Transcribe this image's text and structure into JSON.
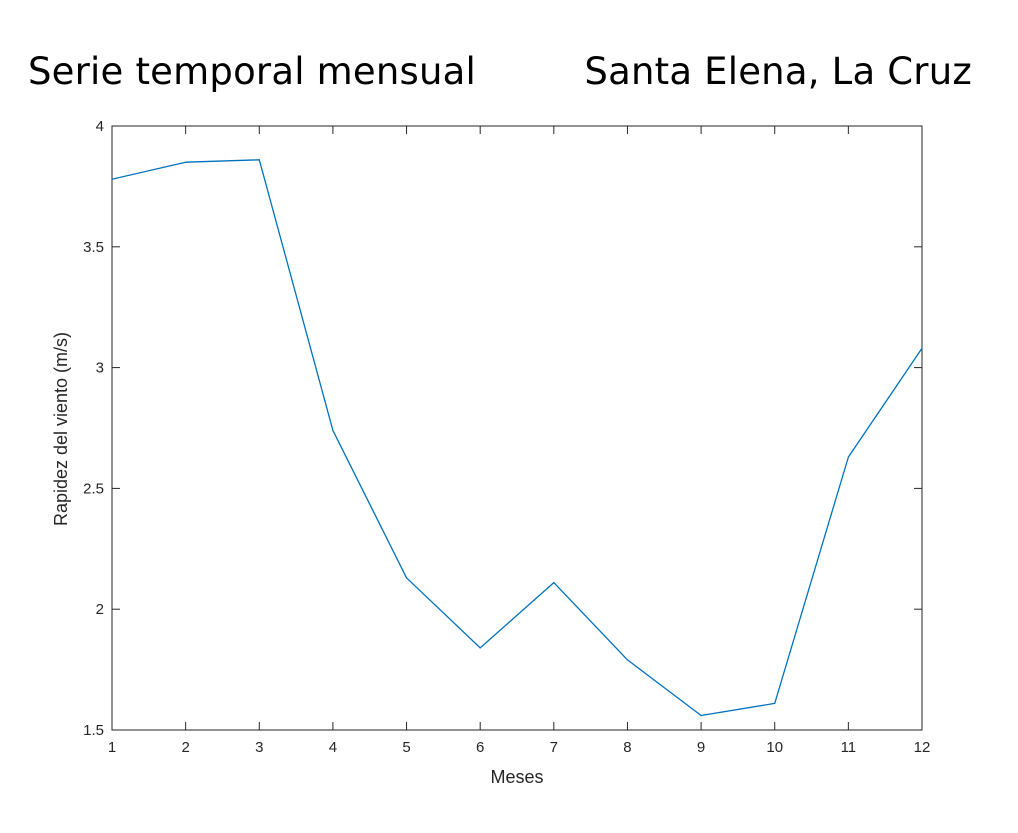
{
  "header": {
    "title_left": "Serie temporal mensual",
    "title_right": "Santa Elena, La Cruz"
  },
  "chart_data": {
    "type": "line",
    "title": "",
    "xlabel": "Meses",
    "ylabel": "Rapidez del viento (m/s)",
    "xlim": [
      1,
      12
    ],
    "ylim": [
      1.5,
      4
    ],
    "xticks": [
      1,
      2,
      3,
      4,
      5,
      6,
      7,
      8,
      9,
      10,
      11,
      12
    ],
    "yticks": [
      1.5,
      2,
      2.5,
      3,
      3.5,
      4
    ],
    "ytick_labels": [
      "1.5",
      "2",
      "2.5",
      "3",
      "3.5",
      "4"
    ],
    "grid": false,
    "series": [
      {
        "color": "#0072BD",
        "x": [
          1,
          2,
          3,
          4,
          5,
          6,
          7,
          8,
          9,
          10,
          11,
          12
        ],
        "y": [
          3.78,
          3.85,
          3.86,
          2.74,
          2.13,
          1.84,
          2.11,
          1.79,
          1.56,
          1.61,
          2.63,
          3.08
        ]
      }
    ]
  }
}
